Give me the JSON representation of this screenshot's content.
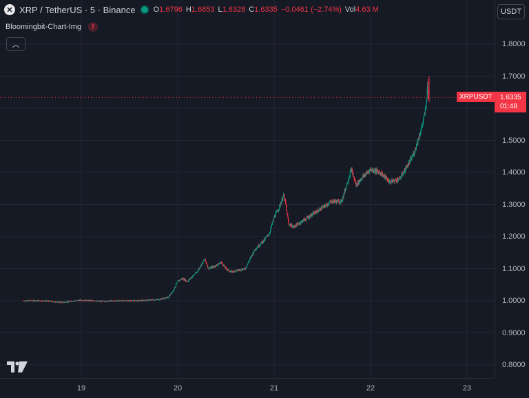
{
  "header": {
    "symbol_icon": "x-logo-icon",
    "title": "XRP / TetherUS · 5 · Binance",
    "ohlc": {
      "o_label": "O",
      "o_value": "1.6796",
      "h_label": "H",
      "h_value": "1.6853",
      "l_label": "L",
      "l_value": "1.6328",
      "c_label": "C",
      "c_value": "1.6335",
      "change": "−0.0461 (−2.74%)",
      "vol_label": "Vol",
      "vol_value": "4.63 M"
    }
  },
  "indicator": {
    "name": "Bloomingbit-Chart-Img",
    "warn_glyph": "!"
  },
  "currency": "USDT",
  "last_price": {
    "symbol": "XRPUSDT",
    "price": "1.6335",
    "countdown": "01:48"
  },
  "colors": {
    "up": "#089981",
    "down": "#f23645",
    "background": "#161a25",
    "grid": "#242733"
  },
  "chart_data": {
    "type": "candlestick",
    "price_ticks": [
      "1.8000",
      "1.7000",
      "1.6000",
      "1.5000",
      "1.4000",
      "1.3000",
      "1.2000",
      "1.1000",
      "1.0000",
      "0.9000",
      "0.8000"
    ],
    "time_ticks": [
      "19",
      "20",
      "21",
      "22",
      "23"
    ],
    "ylim": [
      0.8,
      1.8
    ],
    "path_points": [
      [
        18.4,
        1.0
      ],
      [
        18.6,
        1.0
      ],
      [
        18.8,
        0.995
      ],
      [
        19.0,
        1.002
      ],
      [
        19.2,
        0.998
      ],
      [
        19.4,
        1.0
      ],
      [
        19.6,
        1.0
      ],
      [
        19.8,
        1.004
      ],
      [
        19.9,
        1.01
      ],
      [
        19.95,
        1.03
      ],
      [
        20.0,
        1.06
      ],
      [
        20.05,
        1.07
      ],
      [
        20.1,
        1.06
      ],
      [
        20.2,
        1.09
      ],
      [
        20.28,
        1.13
      ],
      [
        20.32,
        1.1
      ],
      [
        20.4,
        1.11
      ],
      [
        20.45,
        1.12
      ],
      [
        20.5,
        1.1
      ],
      [
        20.55,
        1.09
      ],
      [
        20.7,
        1.1
      ],
      [
        20.75,
        1.13
      ],
      [
        20.8,
        1.16
      ],
      [
        20.9,
        1.19
      ],
      [
        20.95,
        1.21
      ],
      [
        21.0,
        1.26
      ],
      [
        21.05,
        1.29
      ],
      [
        21.1,
        1.33
      ],
      [
        21.12,
        1.3
      ],
      [
        21.15,
        1.24
      ],
      [
        21.2,
        1.23
      ],
      [
        21.3,
        1.25
      ],
      [
        21.4,
        1.27
      ],
      [
        21.5,
        1.29
      ],
      [
        21.6,
        1.31
      ],
      [
        21.7,
        1.31
      ],
      [
        21.75,
        1.36
      ],
      [
        21.8,
        1.41
      ],
      [
        21.85,
        1.36
      ],
      [
        21.9,
        1.38
      ],
      [
        22.0,
        1.41
      ],
      [
        22.1,
        1.4
      ],
      [
        22.2,
        1.37
      ],
      [
        22.3,
        1.38
      ],
      [
        22.4,
        1.43
      ],
      [
        22.45,
        1.46
      ],
      [
        22.5,
        1.51
      ],
      [
        22.53,
        1.54
      ],
      [
        22.56,
        1.58
      ],
      [
        22.58,
        1.62
      ],
      [
        22.59,
        1.68
      ],
      [
        22.6,
        1.6335
      ]
    ]
  }
}
